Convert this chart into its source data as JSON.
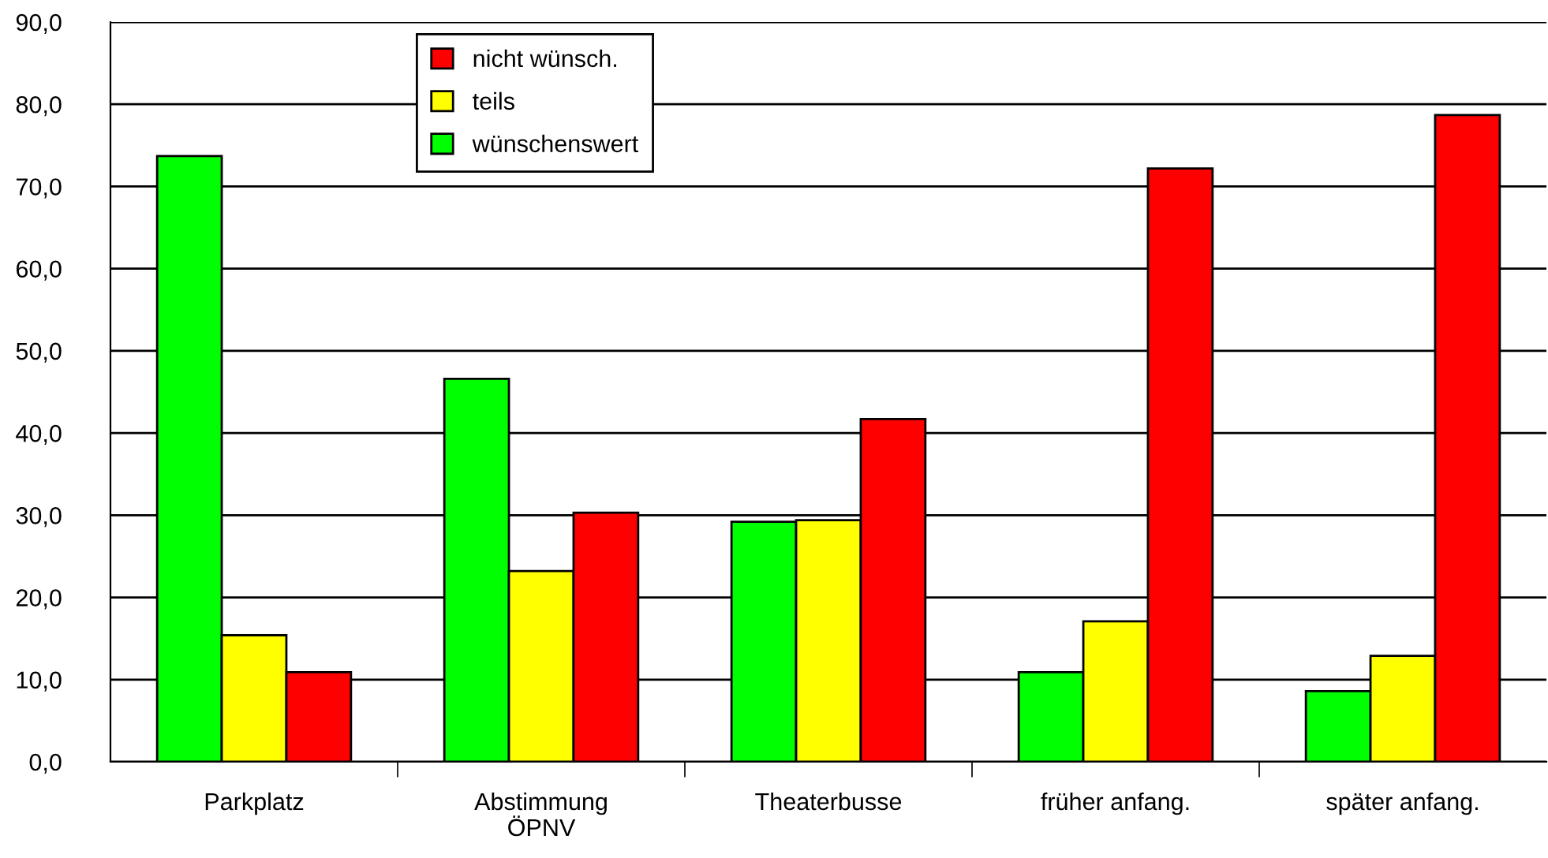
{
  "chart_data": {
    "type": "bar",
    "categories": [
      "Parkplatz",
      "Abstimmung\nÖPNV",
      "Theaterbusse",
      "früher anfang.",
      "später anfang."
    ],
    "series": [
      {
        "name": "wünschenswert",
        "color": "#00ff00",
        "values": [
          73.7,
          46.6,
          29.2,
          10.9,
          8.6
        ]
      },
      {
        "name": "teils",
        "color": "#ffff00",
        "values": [
          15.4,
          23.2,
          29.4,
          17.1,
          12.9
        ]
      },
      {
        "name": "nicht wünsch.",
        "color": "#ff0000",
        "values": [
          10.9,
          30.3,
          41.7,
          72.2,
          78.7
        ]
      }
    ],
    "ylim": [
      0,
      90
    ],
    "yticks": [
      {
        "value": 0,
        "label": "0,0"
      },
      {
        "value": 10,
        "label": "10,0"
      },
      {
        "value": 20,
        "label": "20,0"
      },
      {
        "value": 30,
        "label": "30,0"
      },
      {
        "value": 40,
        "label": "40,0"
      },
      {
        "value": 50,
        "label": "50,0"
      },
      {
        "value": 60,
        "label": "60,0"
      },
      {
        "value": 70,
        "label": "70,0"
      },
      {
        "value": 80,
        "label": "80,0"
      },
      {
        "value": 90,
        "label": "90,0"
      }
    ],
    "grid": "y",
    "legend": "top"
  }
}
